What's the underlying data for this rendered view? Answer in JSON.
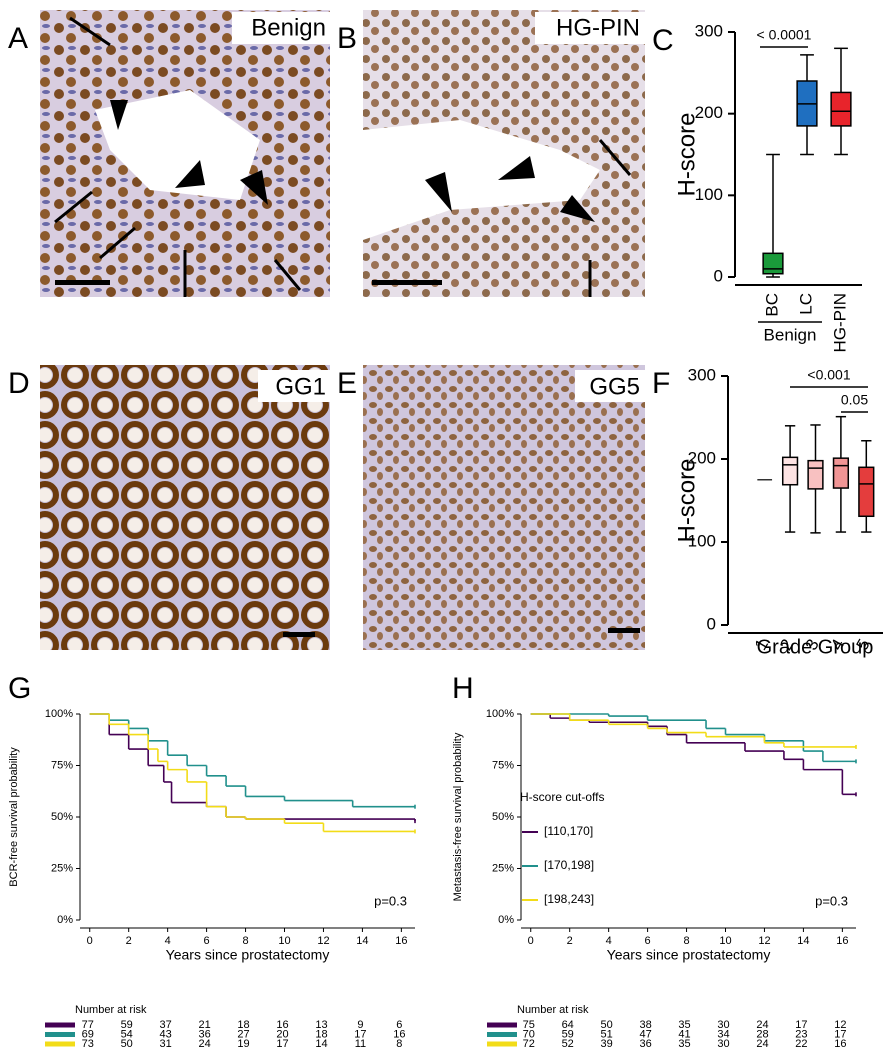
{
  "panel_letters": [
    "A",
    "B",
    "C",
    "D",
    "E",
    "F",
    "G",
    "H"
  ],
  "image_labels": [
    "Benign",
    "HG-PIN",
    "GG1",
    "GG5"
  ],
  "chart_data": [
    {
      "type": "box",
      "y_label": "H-score",
      "ylim": [
        0,
        300
      ],
      "yticks": [
        0,
        100,
        200,
        300
      ],
      "categories": [
        "BC",
        "LC",
        "HG-PIN"
      ],
      "colors": [
        "#1a9a3a",
        "#1f6fc0",
        "#e8242b"
      ],
      "min": [
        0,
        150,
        150
      ],
      "q1": [
        4,
        185,
        185
      ],
      "median": [
        10,
        212,
        203
      ],
      "q3": [
        29,
        240,
        226
      ],
      "max": [
        150,
        272,
        280
      ],
      "group_label": "Benign",
      "annotations": [
        "< 0.0001"
      ]
    },
    {
      "type": "box",
      "y_label": "H-score",
      "x_label": "Grade Group",
      "ylim": [
        0,
        300
      ],
      "yticks": [
        0,
        100,
        200,
        300
      ],
      "categories": [
        "1",
        "2",
        "3",
        "4",
        "5"
      ],
      "colors": [
        "#333333",
        "#fde3e3",
        "#f8c1c1",
        "#f19595",
        "#e43d3d"
      ],
      "min": [
        null,
        112,
        111,
        112,
        112
      ],
      "q1": [
        null,
        169,
        164,
        165,
        131
      ],
      "median": [
        175,
        193,
        189,
        192,
        170
      ],
      "q3": [
        null,
        202,
        198,
        201,
        190
      ],
      "max": [
        null,
        240,
        241,
        251,
        222
      ],
      "annotations": [
        "<0.001",
        "0.05"
      ]
    },
    {
      "type": "step",
      "y_label": "BCR-free survival probability",
      "x_label": "Years since prostatectomy",
      "xlim": [
        -0.5,
        16.7
      ],
      "xticks": [
        0,
        2,
        4,
        6,
        8,
        10,
        12,
        14,
        16
      ],
      "ylim": [
        0,
        100
      ],
      "yticks": [
        {
          "value": 0,
          "label": "0%"
        },
        {
          "value": 25,
          "label": "25%"
        },
        {
          "value": 50,
          "label": "50%"
        },
        {
          "value": 75,
          "label": "75%"
        },
        {
          "value": 100,
          "label": "100%"
        }
      ],
      "annotation": "p=0.3",
      "series": [
        {
          "name": "[110,170]",
          "color": "#440154",
          "x": [
            0,
            1,
            2,
            3,
            3.8,
            4.2,
            6,
            7,
            8,
            16.7
          ],
          "values": [
            100,
            90,
            83,
            75,
            67,
            57,
            55,
            50,
            49,
            48
          ]
        },
        {
          "name": "[170,198]",
          "color": "#21908c",
          "x": [
            0,
            1,
            2,
            3,
            4,
            5,
            6,
            7,
            8,
            10,
            13.5,
            16.7
          ],
          "values": [
            100,
            97,
            93,
            87,
            80,
            75,
            70,
            65,
            60,
            58,
            55,
            55
          ]
        },
        {
          "name": "[198,243]",
          "color": "#f2dc18",
          "x": [
            0,
            1,
            2,
            3,
            3.5,
            4,
            5,
            6,
            7,
            8,
            10,
            12,
            16.7
          ],
          "values": [
            100,
            95,
            90,
            83,
            77,
            73,
            67,
            55,
            50,
            49,
            47,
            43,
            43
          ]
        }
      ],
      "risk_table": {
        "title": "Number at risk",
        "rows": [
          [
            77,
            59,
            37,
            21,
            18,
            16,
            13,
            9,
            6
          ],
          [
            69,
            54,
            43,
            36,
            27,
            20,
            18,
            17,
            16
          ],
          [
            73,
            50,
            31,
            24,
            19,
            17,
            14,
            11,
            8
          ]
        ]
      }
    },
    {
      "type": "step",
      "y_label": "Metastasis-free survival probability",
      "x_label": "Years since prostatectomy",
      "xlim": [
        -0.5,
        16.7
      ],
      "xticks": [
        0,
        2,
        4,
        6,
        8,
        10,
        12,
        14,
        16
      ],
      "ylim": [
        0,
        100
      ],
      "yticks": [
        {
          "value": 0,
          "label": "0%"
        },
        {
          "value": 25,
          "label": "25%"
        },
        {
          "value": 50,
          "label": "50%"
        },
        {
          "value": 75,
          "label": "75%"
        },
        {
          "value": 100,
          "label": "100%"
        }
      ],
      "annotation": "p=0.3",
      "legend": true,
      "legend_title": "H-score cut-offs",
      "series": [
        {
          "name": "[110,170]",
          "color": "#440154",
          "x": [
            0,
            1,
            2,
            3,
            6,
            7,
            8,
            11,
            13,
            14,
            16,
            16.7
          ],
          "values": [
            100,
            98,
            97,
            96,
            94,
            90,
            86,
            82,
            78,
            73,
            61,
            61
          ]
        },
        {
          "name": "[170,198]",
          "color": "#21908c",
          "x": [
            0,
            4,
            6,
            9,
            10,
            12,
            14,
            15,
            16.7
          ],
          "values": [
            100,
            99,
            97,
            93,
            90,
            87,
            82,
            77,
            77
          ]
        },
        {
          "name": "[198,243]",
          "color": "#f2dc18",
          "x": [
            0,
            2,
            4,
            6,
            7,
            9,
            12,
            13,
            16.7
          ],
          "values": [
            100,
            97,
            95,
            93,
            91,
            89,
            86,
            84,
            84
          ]
        }
      ],
      "risk_table": {
        "title": "Number at risk",
        "rows": [
          [
            75,
            64,
            50,
            38,
            35,
            30,
            24,
            17,
            12
          ],
          [
            70,
            59,
            51,
            47,
            41,
            34,
            28,
            23,
            17
          ],
          [
            72,
            52,
            39,
            36,
            35,
            30,
            24,
            22,
            16
          ]
        ]
      }
    }
  ]
}
